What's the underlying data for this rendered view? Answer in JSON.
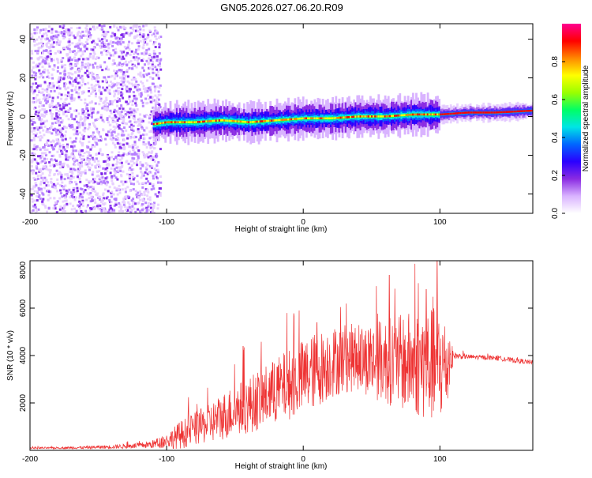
{
  "title": "GN05.2026.027.06.20.R09",
  "chart_data": [
    {
      "type": "heatmap",
      "name": "spectrogram",
      "xlabel": "Height of straight line (km)",
      "ylabel": "Frequency (Hz)",
      "xlim": [
        -200,
        168
      ],
      "ylim": [
        -50,
        48
      ],
      "x_ticks": [
        -200,
        -100,
        0,
        100
      ],
      "y_ticks": [
        -40,
        -20,
        0,
        20,
        40
      ],
      "ridge": {
        "description": "dominant frequency ridge",
        "x": [
          -110,
          -100,
          -80,
          -60,
          -40,
          -20,
          0,
          20,
          40,
          60,
          80,
          100,
          120,
          140,
          168
        ],
        "y": [
          -4,
          -3,
          -3,
          -2,
          -3,
          -2,
          -1,
          -1,
          0,
          0,
          1,
          1,
          2,
          2,
          3
        ]
      },
      "noise_region": [
        -200,
        -105
      ],
      "colorbar": {
        "label": "Normalized spectral amplitude",
        "range": [
          0.0,
          1.0
        ],
        "ticks": [
          "0.0",
          "0.2",
          "0.4",
          "0.6",
          "0.8"
        ],
        "ticks_values": [
          0.0,
          0.2,
          0.4,
          0.6,
          0.8
        ],
        "colormap": [
          "#ffffff",
          "#d9b3ff",
          "#8a2be2",
          "#2a00ff",
          "#0066ff",
          "#00e5e5",
          "#00ff66",
          "#9aff00",
          "#ffff00",
          "#ff8800",
          "#ff0000",
          "#ff0090"
        ]
      }
    },
    {
      "type": "line",
      "name": "snr",
      "xlabel": "Height of straight line (km)",
      "ylabel": "SNR (10 * v/v)",
      "xlim": [
        -200,
        168
      ],
      "ylim": [
        0,
        8000
      ],
      "x_ticks": [
        -200,
        -100,
        0,
        100
      ],
      "y_ticks": [
        2000,
        4000,
        6000,
        8000
      ],
      "color": "#ee3333",
      "series": [
        {
          "name": "SNR envelope",
          "x": [
            -200,
            -180,
            -160,
            -140,
            -120,
            -110,
            -100,
            -90,
            -80,
            -70,
            -60,
            -50,
            -40,
            -30,
            -20,
            -10,
            0,
            10,
            20,
            30,
            40,
            50,
            60,
            70,
            80,
            90,
            100,
            105,
            110,
            120,
            140,
            168
          ],
          "base": [
            100,
            100,
            120,
            150,
            200,
            260,
            400,
            650,
            900,
            1100,
            1400,
            1700,
            1900,
            2200,
            2500,
            2800,
            3100,
            3400,
            3700,
            3900,
            3900,
            3800,
            3800,
            3700,
            3700,
            3600,
            3600,
            3500,
            4000,
            3950,
            3900,
            3700
          ],
          "amp": [
            40,
            40,
            60,
            80,
            120,
            180,
            300,
            600,
            700,
            800,
            1000,
            1100,
            1200,
            1300,
            1400,
            1500,
            1600,
            1600,
            1500,
            1500,
            1400,
            1600,
            1800,
            2000,
            2200,
            2400,
            2500,
            2000,
            150,
            100,
            100,
            100
          ]
        }
      ],
      "spikes": [
        {
          "x": -44,
          "y": 4400
        },
        {
          "x": 10,
          "y": 5400
        },
        {
          "x": 63,
          "y": 7400
        },
        {
          "x": 90,
          "y": 6800
        },
        {
          "x": 98,
          "y": 8000
        }
      ]
    }
  ]
}
